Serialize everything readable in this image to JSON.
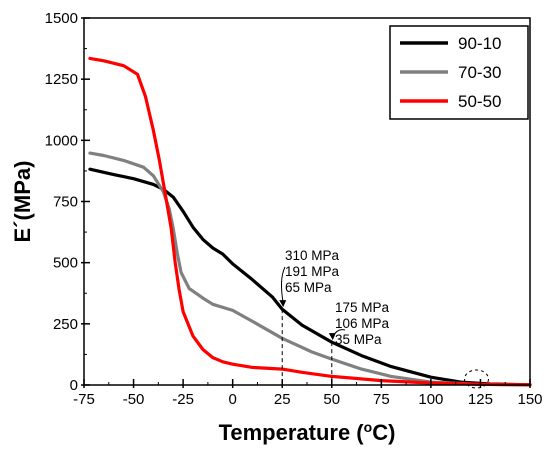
{
  "chart_data": {
    "type": "line",
    "xlabel": "Temperature (",
    "xlabel_unit_sup": "o",
    "xlabel_unit_tail": "C)",
    "ylabel": "E´(MPa)",
    "xlim": [
      -75,
      150
    ],
    "ylim": [
      0,
      1500
    ],
    "x_ticks": [
      -75,
      -50,
      -25,
      0,
      25,
      50,
      75,
      100,
      125,
      150
    ],
    "y_ticks": [
      0,
      250,
      500,
      750,
      1000,
      1250,
      1500
    ],
    "grid": false,
    "legend_position": "top-right",
    "series": [
      {
        "name": "90-10",
        "color": "#000000",
        "points": [
          [
            -72,
            882
          ],
          [
            -60,
            860
          ],
          [
            -50,
            843
          ],
          [
            -40,
            820
          ],
          [
            -35,
            800
          ],
          [
            -30,
            768
          ],
          [
            -25,
            710
          ],
          [
            -20,
            645
          ],
          [
            -15,
            595
          ],
          [
            -10,
            560
          ],
          [
            -5,
            535
          ],
          [
            0,
            495
          ],
          [
            10,
            430
          ],
          [
            20,
            360
          ],
          [
            25,
            310
          ],
          [
            35,
            245
          ],
          [
            50,
            175
          ],
          [
            65,
            120
          ],
          [
            80,
            75
          ],
          [
            100,
            32
          ],
          [
            115,
            12
          ],
          [
            130,
            4
          ],
          [
            150,
            1
          ]
        ]
      },
      {
        "name": "70-30",
        "color": "#808080",
        "points": [
          [
            -72,
            948
          ],
          [
            -65,
            938
          ],
          [
            -55,
            918
          ],
          [
            -45,
            890
          ],
          [
            -40,
            855
          ],
          [
            -35,
            790
          ],
          [
            -32,
            720
          ],
          [
            -30,
            640
          ],
          [
            -28,
            540
          ],
          [
            -26,
            460
          ],
          [
            -22,
            395
          ],
          [
            -15,
            355
          ],
          [
            -10,
            330
          ],
          [
            0,
            305
          ],
          [
            10,
            260
          ],
          [
            25,
            191
          ],
          [
            40,
            135
          ],
          [
            50,
            106
          ],
          [
            65,
            65
          ],
          [
            80,
            35
          ],
          [
            100,
            12
          ],
          [
            125,
            3
          ],
          [
            150,
            0
          ]
        ]
      },
      {
        "name": "50-50",
        "color": "#ff0000",
        "points": [
          [
            -72,
            1335
          ],
          [
            -65,
            1325
          ],
          [
            -55,
            1305
          ],
          [
            -48,
            1270
          ],
          [
            -44,
            1180
          ],
          [
            -40,
            1040
          ],
          [
            -37,
            920
          ],
          [
            -34,
            780
          ],
          [
            -31,
            640
          ],
          [
            -29,
            500
          ],
          [
            -27,
            390
          ],
          [
            -25,
            300
          ],
          [
            -20,
            200
          ],
          [
            -15,
            145
          ],
          [
            -10,
            112
          ],
          [
            -5,
            95
          ],
          [
            0,
            85
          ],
          [
            10,
            72
          ],
          [
            25,
            65
          ],
          [
            35,
            52
          ],
          [
            50,
            35
          ],
          [
            75,
            18
          ],
          [
            100,
            8
          ],
          [
            125,
            3
          ],
          [
            150,
            1
          ]
        ]
      }
    ],
    "annotations": [
      {
        "x": 25,
        "lines": [
          "310 MPa",
          "191 MPa",
          "65 MPa"
        ],
        "values": [
          310,
          191,
          65
        ]
      },
      {
        "x": 50,
        "lines": [
          "175 MPa",
          "106 MPa",
          "35 MPa"
        ],
        "values": [
          175,
          106,
          35
        ]
      }
    ],
    "marker_ellipse_x": 123
  }
}
